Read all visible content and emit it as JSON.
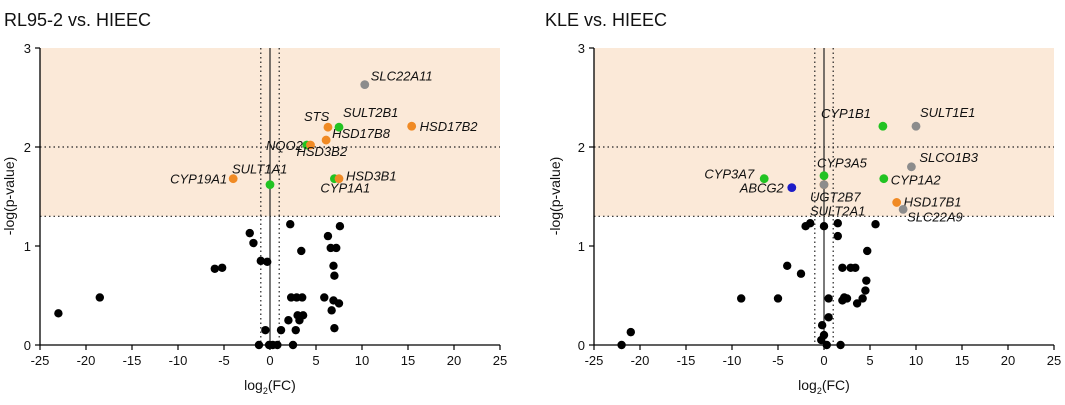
{
  "colors": {
    "band": "#fbe9d8",
    "black": "#000000",
    "orange": "#f08a24",
    "green": "#22c322",
    "grey": "#8c8c8c",
    "blue": "#1c1cc8"
  },
  "chart_data": [
    {
      "type": "scatter",
      "title": "RL95-2 vs. HIEEC",
      "xlabel": "log2(FC)",
      "ylabel": "-log(p-value)",
      "xlim": [
        -25,
        25
      ],
      "ylim": [
        0,
        3
      ],
      "xticks": [
        -25,
        -20,
        -15,
        -10,
        -5,
        0,
        5,
        10,
        15,
        20,
        25
      ],
      "yticks": [
        0,
        1,
        2,
        3
      ],
      "significance_band_y": [
        1.3,
        3
      ],
      "vertical_lines": [
        -1,
        0,
        1
      ],
      "horizontal_lines": [
        1.3,
        2
      ],
      "points": [
        {
          "x": -23,
          "y": 0.32,
          "color": "black"
        },
        {
          "x": -18.5,
          "y": 0.48,
          "color": "black"
        },
        {
          "x": -6,
          "y": 0.77,
          "color": "black"
        },
        {
          "x": -5.2,
          "y": 0.78,
          "color": "black"
        },
        {
          "x": -2.2,
          "y": 1.13,
          "color": "black"
        },
        {
          "x": -1.8,
          "y": 1.03,
          "color": "black"
        },
        {
          "x": -1.0,
          "y": 0.85,
          "color": "black"
        },
        {
          "x": -0.3,
          "y": 0.84,
          "color": "black"
        },
        {
          "x": -0.5,
          "y": 0.15,
          "color": "black"
        },
        {
          "x": -0.1,
          "y": 0.0,
          "color": "black"
        },
        {
          "x": 0.3,
          "y": 0.0,
          "color": "black"
        },
        {
          "x": 0.8,
          "y": 0.0,
          "color": "black"
        },
        {
          "x": 1.2,
          "y": 0.15,
          "color": "black"
        },
        {
          "x": -1.2,
          "y": 0.0,
          "color": "black"
        },
        {
          "x": 2.2,
          "y": 1.22,
          "color": "black"
        },
        {
          "x": 2.3,
          "y": 0.48,
          "color": "black"
        },
        {
          "x": 2.9,
          "y": 0.48,
          "color": "black"
        },
        {
          "x": 3.0,
          "y": 0.3,
          "color": "black"
        },
        {
          "x": 3.4,
          "y": 0.95,
          "color": "black"
        },
        {
          "x": 3.5,
          "y": 0.48,
          "color": "black"
        },
        {
          "x": 2.5,
          "y": 0.0,
          "color": "black"
        },
        {
          "x": 2.8,
          "y": 0.15,
          "color": "black"
        },
        {
          "x": 2.0,
          "y": 0.25,
          "color": "black"
        },
        {
          "x": 3.6,
          "y": 0.3,
          "color": "black"
        },
        {
          "x": 3.2,
          "y": 0.25,
          "color": "black"
        },
        {
          "x": 5.9,
          "y": 0.48,
          "color": "black"
        },
        {
          "x": 6.3,
          "y": 1.1,
          "color": "black"
        },
        {
          "x": 6.6,
          "y": 0.98,
          "color": "black"
        },
        {
          "x": 6.7,
          "y": 0.35,
          "color": "black"
        },
        {
          "x": 6.9,
          "y": 0.45,
          "color": "black"
        },
        {
          "x": 6.9,
          "y": 0.8,
          "color": "black"
        },
        {
          "x": 7.0,
          "y": 0.7,
          "color": "black"
        },
        {
          "x": 7.0,
          "y": 0.17,
          "color": "black"
        },
        {
          "x": 7.2,
          "y": 0.98,
          "color": "black"
        },
        {
          "x": 7.5,
          "y": 0.42,
          "color": "black"
        },
        {
          "x": 7.6,
          "y": 1.2,
          "color": "black"
        },
        {
          "x": -4,
          "y": 1.68,
          "color": "orange",
          "label": "CYP19A1"
        },
        {
          "x": 0,
          "y": 1.62,
          "color": "green",
          "label": "SULT1A1"
        },
        {
          "x": 4.0,
          "y": 2.02,
          "color": "green",
          "label": "NQO2"
        },
        {
          "x": 4.4,
          "y": 2.02,
          "color": "orange",
          "label": "HSD3B2"
        },
        {
          "x": 6.1,
          "y": 2.07,
          "color": "orange",
          "label": "HSD17B8"
        },
        {
          "x": 6.3,
          "y": 2.2,
          "color": "orange",
          "label": "STS"
        },
        {
          "x": 7.5,
          "y": 2.2,
          "color": "green",
          "label": "SULT2B1"
        },
        {
          "x": 7.0,
          "y": 1.68,
          "color": "green",
          "label": "CYP1A1"
        },
        {
          "x": 7.5,
          "y": 1.68,
          "color": "orange",
          "label": "HSD3B1"
        },
        {
          "x": 10.3,
          "y": 2.63,
          "color": "grey",
          "label": "SLC22A11"
        },
        {
          "x": 15.4,
          "y": 2.21,
          "color": "orange",
          "label": "HSD17B2"
        }
      ],
      "labels": [
        "STS",
        "SULT2B1",
        "SLC22A11",
        "HSD17B2",
        "NQO2",
        "HSD17B8",
        "HSD3B2",
        "CYP19A1",
        "SULT1A1",
        "HSD3B1",
        "CYP1A1"
      ]
    },
    {
      "type": "scatter",
      "title": "KLE vs. HIEEC",
      "xlabel": "log2(FC)",
      "ylabel": "-log(p-value)",
      "xlim": [
        -25,
        25
      ],
      "ylim": [
        0,
        3
      ],
      "xticks": [
        -25,
        -20,
        -15,
        -10,
        -5,
        0,
        5,
        10,
        15,
        20,
        25
      ],
      "yticks": [
        0,
        1,
        2,
        3
      ],
      "significance_band_y": [
        1.3,
        3
      ],
      "vertical_lines": [
        -1,
        0,
        1
      ],
      "horizontal_lines": [
        1.3,
        2
      ],
      "points": [
        {
          "x": -22,
          "y": 0.0,
          "color": "black"
        },
        {
          "x": -21,
          "y": 0.13,
          "color": "black"
        },
        {
          "x": -9,
          "y": 0.47,
          "color": "black"
        },
        {
          "x": -5,
          "y": 0.47,
          "color": "black"
        },
        {
          "x": -4,
          "y": 0.8,
          "color": "black"
        },
        {
          "x": -2.5,
          "y": 0.72,
          "color": "black"
        },
        {
          "x": -2.0,
          "y": 1.2,
          "color": "black"
        },
        {
          "x": -1.5,
          "y": 1.23,
          "color": "black"
        },
        {
          "x": 0.0,
          "y": 1.2,
          "color": "black"
        },
        {
          "x": 0.3,
          "y": 0.0,
          "color": "black"
        },
        {
          "x": -0.3,
          "y": 0.05,
          "color": "black"
        },
        {
          "x": 0.0,
          "y": 0.1,
          "color": "black"
        },
        {
          "x": -0.2,
          "y": 0.2,
          "color": "black"
        },
        {
          "x": 0.5,
          "y": 0.28,
          "color": "black"
        },
        {
          "x": 0.5,
          "y": 0.47,
          "color": "black"
        },
        {
          "x": 1.5,
          "y": 1.23,
          "color": "black"
        },
        {
          "x": 1.5,
          "y": 1.1,
          "color": "black"
        },
        {
          "x": 1.8,
          "y": 0.0,
          "color": "black"
        },
        {
          "x": 2.0,
          "y": 0.78,
          "color": "black"
        },
        {
          "x": 2.0,
          "y": 0.45,
          "color": "black"
        },
        {
          "x": 2.2,
          "y": 0.48,
          "color": "black"
        },
        {
          "x": 2.5,
          "y": 0.47,
          "color": "black"
        },
        {
          "x": 2.9,
          "y": 0.78,
          "color": "black"
        },
        {
          "x": 3.4,
          "y": 0.78,
          "color": "black"
        },
        {
          "x": 3.6,
          "y": 0.42,
          "color": "black"
        },
        {
          "x": 4.2,
          "y": 0.47,
          "color": "black"
        },
        {
          "x": 4.5,
          "y": 0.55,
          "color": "black"
        },
        {
          "x": 4.6,
          "y": 0.65,
          "color": "black"
        },
        {
          "x": 4.7,
          "y": 0.95,
          "color": "black"
        },
        {
          "x": 5.6,
          "y": 1.22,
          "color": "black"
        },
        {
          "x": 6.4,
          "y": 2.21,
          "color": "green",
          "label": "CYP1B1"
        },
        {
          "x": 10,
          "y": 2.21,
          "color": "grey",
          "label": "SULT1E1"
        },
        {
          "x": -6.5,
          "y": 1.68,
          "color": "green",
          "label": "CYP3A7"
        },
        {
          "x": -3.5,
          "y": 1.59,
          "color": "blue",
          "label": "ABCG2"
        },
        {
          "x": 0.0,
          "y": 1.71,
          "color": "green",
          "label": "CYP3A5"
        },
        {
          "x": 0.0,
          "y": 1.62,
          "color": "orange",
          "label": "UGT2B7"
        },
        {
          "x": 0.0,
          "y": 1.62,
          "color": "grey",
          "label": "SULT2A1"
        },
        {
          "x": 9.5,
          "y": 1.8,
          "color": "grey",
          "label": "SLCO1B3"
        },
        {
          "x": 6.5,
          "y": 1.68,
          "color": "green",
          "label": "CYP1A2"
        },
        {
          "x": 7.9,
          "y": 1.44,
          "color": "orange",
          "label": "HSD17B1"
        },
        {
          "x": 8.6,
          "y": 1.37,
          "color": "grey",
          "label": "SLC22A9"
        }
      ],
      "labels": [
        "CYP1B1",
        "SULT1E1",
        "SLCO1B3",
        "CYP3A5",
        "CYP3A7",
        "ABCG2",
        "CYP1A2",
        "UGT2B7",
        "HSD17B1",
        "SULT2A1",
        "SLC22A9"
      ]
    }
  ]
}
